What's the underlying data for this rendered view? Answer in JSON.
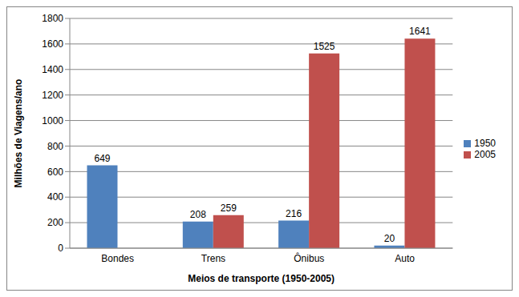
{
  "chart_data": {
    "type": "bar",
    "categories": [
      "Bondes",
      "Trens",
      "Ônibus",
      "Auto"
    ],
    "series": [
      {
        "name": "1950",
        "color": "#4F81BD",
        "values": [
          649,
          208,
          216,
          20
        ]
      },
      {
        "name": "2005",
        "color": "#C0504D",
        "values": [
          0,
          259,
          1525,
          1641
        ]
      }
    ],
    "x_label": "Meios de transporte (1950-2005)",
    "y_label": "Milhões de Viagens/ano",
    "ylim": [
      0,
      1800
    ],
    "yticks": [
      0,
      200,
      400,
      600,
      800,
      1000,
      1200,
      1400,
      1600,
      1800
    ],
    "grid": true,
    "legend": "right",
    "data_labels": true
  }
}
